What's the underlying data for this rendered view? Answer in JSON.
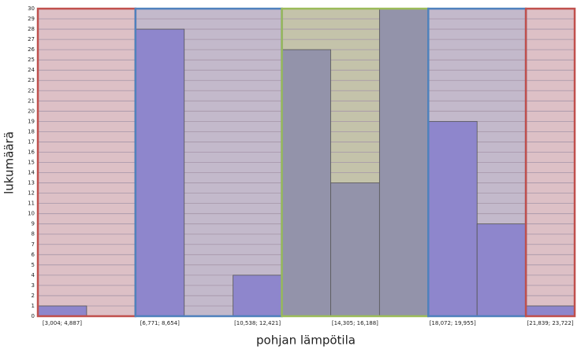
{
  "chart_data": {
    "type": "bar",
    "x_label": "pohjan lämpötila",
    "y_label": "lukumäärä",
    "categories": [
      "[3,004; 4,887]",
      null,
      "[6,771; 8,654]",
      null,
      "[10,538; 12,421]",
      null,
      "[14,305; 16,188]",
      null,
      "[18,072; 19,955]",
      null,
      "[21,839; 23,722]"
    ],
    "values": [
      1,
      0,
      28,
      0,
      4,
      26,
      13,
      30,
      19,
      9,
      1
    ],
    "ylim": [
      0,
      30
    ],
    "yticks": [
      0,
      1,
      2,
      3,
      4,
      5,
      6,
      7,
      8,
      9,
      10,
      11,
      12,
      13,
      14,
      15,
      16,
      17,
      18,
      19,
      20,
      21,
      22,
      23,
      24,
      25,
      26,
      27,
      28,
      29,
      30
    ],
    "grid": true,
    "zones": [
      {
        "bins": [
          0,
          1
        ],
        "border": "#c0504d",
        "background": "#ddc0c6",
        "bar": "#8e86cc"
      },
      {
        "bins": [
          2,
          4
        ],
        "border": "#4f81bd",
        "background": "#c3b9cb",
        "bar": "#8e86cc"
      },
      {
        "bins": [
          5,
          7
        ],
        "border": "#9bbb59",
        "background": "#c4c3aa",
        "bar": "#9393aa"
      },
      {
        "bins": [
          8,
          9
        ],
        "border": "#4f81bd",
        "background": "#c3b9cb",
        "bar": "#8e86cc"
      },
      {
        "bins": [
          10,
          10
        ],
        "border": "#c0504d",
        "background": "#ddc0c6",
        "bar": "#8e86cc"
      }
    ]
  }
}
